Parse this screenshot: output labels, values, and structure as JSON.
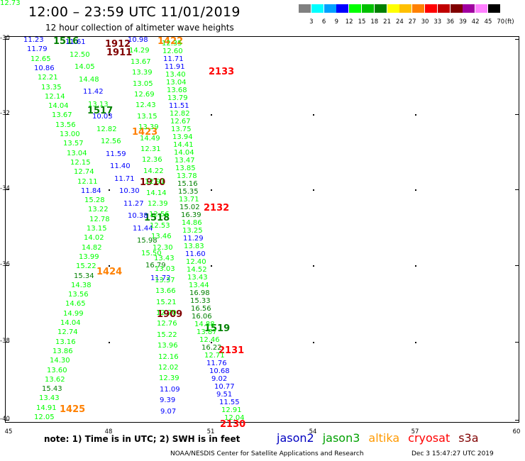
{
  "header": {
    "title": "12:00 – 23:59 UTC 11/01/2019",
    "subtitle": "12 hour collection of altimeter wave heights"
  },
  "color_scale": {
    "unit": "(ft)",
    "colors": [
      "#808080",
      "#00ffff",
      "#00a0ff",
      "#0000ff",
      "#00ff00",
      "#00c000",
      "#008000",
      "#ffff00",
      "#ffc000",
      "#ff8000",
      "#ff0000",
      "#c00000",
      "#800000",
      "#a000a0",
      "#ff80ff",
      "#000000"
    ],
    "labels": [
      "3",
      "6",
      "9",
      "12",
      "15",
      "18",
      "21",
      "24",
      "27",
      "30",
      "33",
      "36",
      "39",
      "42",
      "45",
      "70"
    ]
  },
  "axes": {
    "lat_labels": [
      "-30",
      "-32",
      "-34",
      "-36",
      "-38",
      "-40"
    ],
    "lon_labels": [
      "45",
      "48",
      "51",
      "54",
      "57",
      "60"
    ]
  },
  "pass_labels": [
    {
      "text": "1516",
      "color": "#008000"
    },
    {
      "text": "1912",
      "color": "#800000"
    },
    {
      "text": "1911",
      "color": "#800000"
    },
    {
      "text": "1422",
      "color": "#ff8000"
    },
    {
      "text": "2133",
      "color": "#ff0000"
    },
    {
      "text": "1517",
      "color": "#008000"
    },
    {
      "text": "1423",
      "color": "#ff8000"
    },
    {
      "text": "1910",
      "color": "#800000"
    },
    {
      "text": "2132",
      "color": "#ff0000"
    },
    {
      "text": "1518",
      "color": "#008000"
    },
    {
      "text": "1424",
      "color": "#ff8000"
    },
    {
      "text": "1909",
      "color": "#800000"
    },
    {
      "text": "1519",
      "color": "#008000"
    },
    {
      "text": "2131",
      "color": "#ff0000"
    },
    {
      "text": "1425",
      "color": "#ff8000"
    },
    {
      "text": "2130",
      "color": "#ff0000"
    }
  ],
  "swh_values": [
    {
      "t": "11.23",
      "c": "#0000ff"
    },
    {
      "t": "11.79",
      "c": "#0000ff"
    },
    {
      "t": "12.65",
      "c": "#00ff00"
    },
    {
      "t": "10.86",
      "c": "#0000ff"
    },
    {
      "t": "12.21",
      "c": "#00ff00"
    },
    {
      "t": "13.35",
      "c": "#00ff00"
    },
    {
      "t": "12.14",
      "c": "#00ff00"
    },
    {
      "t": "14.04",
      "c": "#00ff00"
    },
    {
      "t": "13.67",
      "c": "#00ff00"
    },
    {
      "t": "13.56",
      "c": "#00ff00"
    },
    {
      "t": "13.00",
      "c": "#00ff00"
    },
    {
      "t": "13.57",
      "c": "#00ff00"
    },
    {
      "t": "13.04",
      "c": "#00ff00"
    },
    {
      "t": "12.15",
      "c": "#00ff00"
    },
    {
      "t": "12.74",
      "c": "#00ff00"
    },
    {
      "t": "12.11",
      "c": "#00ff00"
    },
    {
      "t": "11.84",
      "c": "#0000ff"
    },
    {
      "t": "15.28",
      "c": "#00ff00"
    },
    {
      "t": "13.22",
      "c": "#00ff00"
    },
    {
      "t": "12.78",
      "c": "#00ff00"
    },
    {
      "t": "13.15",
      "c": "#00ff00"
    },
    {
      "t": "14.02",
      "c": "#00ff00"
    },
    {
      "t": "14.82",
      "c": "#00ff00"
    },
    {
      "t": "13.99",
      "c": "#00ff00"
    },
    {
      "t": "15.22",
      "c": "#00ff00"
    },
    {
      "t": "15.34",
      "c": "#008000"
    },
    {
      "t": "14.38",
      "c": "#00ff00"
    },
    {
      "t": "13.56",
      "c": "#00ff00"
    },
    {
      "t": "14.65",
      "c": "#00ff00"
    },
    {
      "t": "14.99",
      "c": "#00ff00"
    },
    {
      "t": "14.04",
      "c": "#00ff00"
    },
    {
      "t": "12.74",
      "c": "#00ff00"
    },
    {
      "t": "13.16",
      "c": "#00ff00"
    },
    {
      "t": "13.86",
      "c": "#00ff00"
    },
    {
      "t": "14.30",
      "c": "#00ff00"
    },
    {
      "t": "13.60",
      "c": "#00ff00"
    },
    {
      "t": "13.62",
      "c": "#00ff00"
    },
    {
      "t": "15.43",
      "c": "#008000"
    },
    {
      "t": "13.43",
      "c": "#00ff00"
    },
    {
      "t": "14.91",
      "c": "#00ff00"
    },
    {
      "t": "12.05",
      "c": "#00ff00"
    },
    {
      "t": "11.61",
      "c": "#0000ff"
    },
    {
      "t": "12.50",
      "c": "#00ff00"
    },
    {
      "t": "14.05",
      "c": "#00ff00"
    },
    {
      "t": "14.48",
      "c": "#00ff00"
    },
    {
      "t": "11.42",
      "c": "#0000ff"
    },
    {
      "t": "13.13",
      "c": "#00ff00"
    },
    {
      "t": "10.03",
      "c": "#0000ff"
    },
    {
      "t": "12.82",
      "c": "#00ff00"
    },
    {
      "t": "12.56",
      "c": "#00ff00"
    },
    {
      "t": "11.59",
      "c": "#0000ff"
    },
    {
      "t": "11.40",
      "c": "#0000ff"
    },
    {
      "t": "11.71",
      "c": "#0000ff"
    },
    {
      "t": "10.30",
      "c": "#0000ff"
    },
    {
      "t": "11.27",
      "c": "#0000ff"
    },
    {
      "t": "10.38",
      "c": "#0000ff"
    },
    {
      "t": "11.44",
      "c": "#0000ff"
    },
    {
      "t": "15.98",
      "c": "#008000"
    },
    {
      "t": "15.50",
      "c": "#00ff00"
    },
    {
      "t": "16.79",
      "c": "#008000"
    },
    {
      "t": "11.72",
      "c": "#0000ff"
    },
    {
      "t": "10.98",
      "c": "#0000ff"
    },
    {
      "t": "14.29",
      "c": "#00ff00"
    },
    {
      "t": "13.67",
      "c": "#00ff00"
    },
    {
      "t": "13.39",
      "c": "#00ff00"
    },
    {
      "t": "13.05",
      "c": "#00ff00"
    },
    {
      "t": "12.69",
      "c": "#00ff00"
    },
    {
      "t": "12.43",
      "c": "#00ff00"
    },
    {
      "t": "13.15",
      "c": "#00ff00"
    },
    {
      "t": "13.39",
      "c": "#00ff00"
    },
    {
      "t": "14.49",
      "c": "#00ff00"
    },
    {
      "t": "12.31",
      "c": "#00ff00"
    },
    {
      "t": "12.36",
      "c": "#00ff00"
    },
    {
      "t": "14.22",
      "c": "#00ff00"
    },
    {
      "t": "12.91",
      "c": "#00ff00"
    },
    {
      "t": "14.14",
      "c": "#00ff00"
    },
    {
      "t": "12.39",
      "c": "#00ff00"
    },
    {
      "t": "12.56",
      "c": "#00ff00"
    },
    {
      "t": "12.53",
      "c": "#00ff00"
    },
    {
      "t": "13.46",
      "c": "#00ff00"
    },
    {
      "t": "12.30",
      "c": "#00ff00"
    },
    {
      "t": "13.43",
      "c": "#00ff00"
    },
    {
      "t": "13.03",
      "c": "#00ff00"
    },
    {
      "t": "13.37",
      "c": "#00ff00"
    },
    {
      "t": "13.66",
      "c": "#00ff00"
    },
    {
      "t": "15.21",
      "c": "#00ff00"
    },
    {
      "t": "12.70",
      "c": "#00ff00"
    },
    {
      "t": "12.76",
      "c": "#00ff00"
    },
    {
      "t": "15.22",
      "c": "#00ff00"
    },
    {
      "t": "13.96",
      "c": "#00ff00"
    },
    {
      "t": "12.16",
      "c": "#00ff00"
    },
    {
      "t": "12.02",
      "c": "#00ff00"
    },
    {
      "t": "12.39",
      "c": "#00ff00"
    },
    {
      "t": "11.09",
      "c": "#0000ff"
    },
    {
      "t": "9.39",
      "c": "#0000ff"
    },
    {
      "t": "9.07",
      "c": "#0000ff"
    },
    {
      "t": "12.35",
      "c": "#00ff00"
    },
    {
      "t": "12.60",
      "c": "#00ff00"
    },
    {
      "t": "11.71",
      "c": "#0000ff"
    },
    {
      "t": "11.91",
      "c": "#0000ff"
    },
    {
      "t": "13.40",
      "c": "#00ff00"
    },
    {
      "t": "13.04",
      "c": "#00ff00"
    },
    {
      "t": "13.68",
      "c": "#00ff00"
    },
    {
      "t": "13.79",
      "c": "#00ff00"
    },
    {
      "t": "11.51",
      "c": "#0000ff"
    },
    {
      "t": "12.82",
      "c": "#00ff00"
    },
    {
      "t": "12.67",
      "c": "#00ff00"
    },
    {
      "t": "13.75",
      "c": "#00ff00"
    },
    {
      "t": "13.94",
      "c": "#00ff00"
    },
    {
      "t": "14.41",
      "c": "#00ff00"
    },
    {
      "t": "14.04",
      "c": "#00ff00"
    },
    {
      "t": "13.47",
      "c": "#00ff00"
    },
    {
      "t": "13.85",
      "c": "#00ff00"
    },
    {
      "t": "13.78",
      "c": "#00ff00"
    },
    {
      "t": "15.16",
      "c": "#008000"
    },
    {
      "t": "15.35",
      "c": "#008000"
    },
    {
      "t": "13.71",
      "c": "#00ff00"
    },
    {
      "t": "15.02",
      "c": "#008000"
    },
    {
      "t": "16.39",
      "c": "#008000"
    },
    {
      "t": "14.86",
      "c": "#00ff00"
    },
    {
      "t": "13.25",
      "c": "#00ff00"
    },
    {
      "t": "11.29",
      "c": "#0000ff"
    },
    {
      "t": "13.83",
      "c": "#00ff00"
    },
    {
      "t": "11.60",
      "c": "#0000ff"
    },
    {
      "t": "12.40",
      "c": "#00ff00"
    },
    {
      "t": "14.52",
      "c": "#00ff00"
    },
    {
      "t": "13.43",
      "c": "#00ff00"
    },
    {
      "t": "13.44",
      "c": "#00ff00"
    },
    {
      "t": "16.98",
      "c": "#008000"
    },
    {
      "t": "15.33",
      "c": "#008000"
    },
    {
      "t": "16.56",
      "c": "#008000"
    },
    {
      "t": "16.06",
      "c": "#008000"
    },
    {
      "t": "14.88",
      "c": "#00ff00"
    },
    {
      "t": "13.87",
      "c": "#00ff00"
    },
    {
      "t": "12.46",
      "c": "#00ff00"
    },
    {
      "t": "16.22",
      "c": "#008000"
    },
    {
      "t": "12.71",
      "c": "#00ff00"
    },
    {
      "t": "11.76",
      "c": "#0000ff"
    },
    {
      "t": "10.68",
      "c": "#0000ff"
    },
    {
      "t": "9.02",
      "c": "#0000ff"
    },
    {
      "t": "10.77",
      "c": "#0000ff"
    },
    {
      "t": "9.51",
      "c": "#0000ff"
    },
    {
      "t": "11.55",
      "c": "#0000ff"
    },
    {
      "t": "12.91",
      "c": "#00ff00"
    },
    {
      "t": "12.04",
      "c": "#00ff00"
    },
    {
      "t": "12.73",
      "c": "#00ff00"
    }
  ],
  "footer": {
    "note": "note:  1) Time is in UTC;  2) SWH is in feet",
    "credit": "NOAA/NESDIS Center for Satellite Applications and Research",
    "timestamp": "Dec  3 15:47:27 UTC 2019",
    "missions": [
      {
        "name": "jason2",
        "color": "#0000c0"
      },
      {
        "name": "jason3",
        "color": "#00a000"
      },
      {
        "name": "altika",
        "color": "#ff9900"
      },
      {
        "name": "cryosat",
        "color": "#ff0000"
      },
      {
        "name": "s3a",
        "color": "#800000"
      }
    ]
  }
}
